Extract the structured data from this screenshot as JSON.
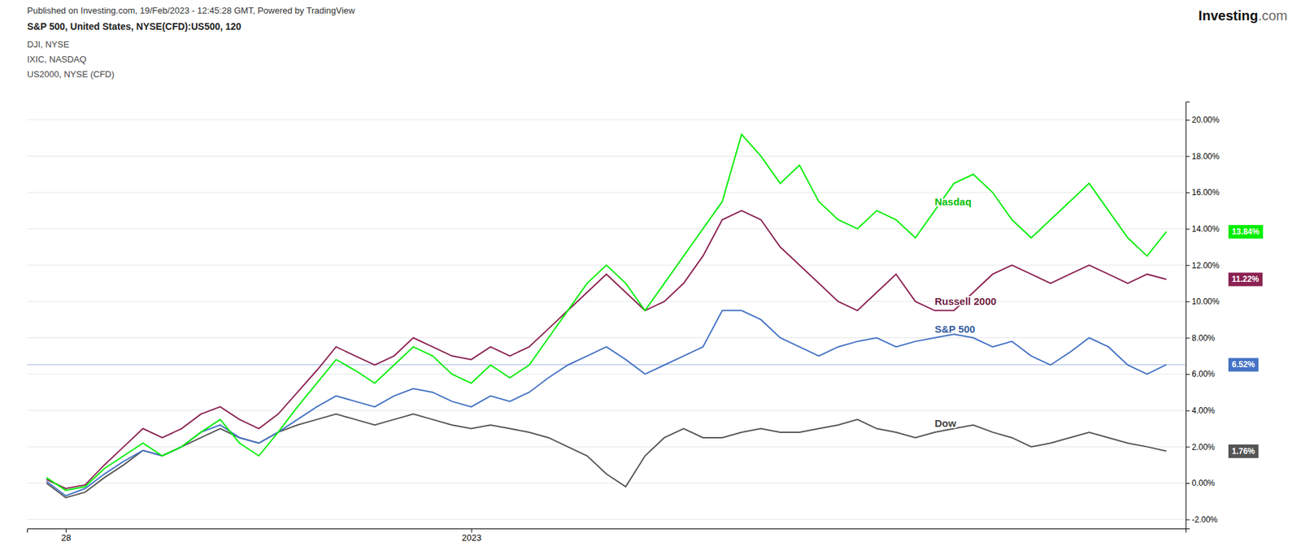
{
  "chart_data": {
    "type": "line",
    "title": "Published on Investing.com, 19/Feb/2023 - 12:45:28 GMT, Powered by TradingView",
    "subtitle": "S&P 500, United States, NYSE(CFD):US500, 120",
    "source_lines": [
      "DJI, NYSE",
      "IXIC, NASDAQ",
      "US2000, NYSE (CFD)"
    ],
    "watermark": [
      "Investing",
      ".com"
    ],
    "categories": [
      null,
      "28",
      null,
      null,
      null,
      null,
      null,
      null,
      null,
      null,
      null,
      null,
      null,
      null,
      null,
      null,
      null,
      null,
      null,
      null,
      null,
      null,
      "2023",
      null,
      null,
      null,
      null,
      null,
      null,
      null,
      null,
      null,
      null,
      null,
      null,
      null,
      null,
      null,
      null,
      null,
      null,
      null,
      null,
      null,
      null,
      null,
      null,
      null,
      null,
      null,
      null,
      null,
      null,
      null,
      null,
      null,
      null,
      null,
      null
    ],
    "ylim": [
      -2.5,
      21.0
    ],
    "yticks": [
      {
        "value": -2.0,
        "label": "-2.00%"
      },
      {
        "value": 0.0,
        "label": "0.00%"
      },
      {
        "value": 2.0,
        "label": "2.00%"
      },
      {
        "value": 4.0,
        "label": "4.00%"
      },
      {
        "value": 6.0,
        "label": "6.00%"
      },
      {
        "value": 8.0,
        "label": "8.00%"
      },
      {
        "value": 10.0,
        "label": "10.00%"
      },
      {
        "value": 12.0,
        "label": "12.00%"
      },
      {
        "value": 14.0,
        "label": "14.00%"
      },
      {
        "value": 16.0,
        "label": "16.00%"
      },
      {
        "value": 18.0,
        "label": "18.00%"
      },
      {
        "value": 20.0,
        "label": "20.00%"
      }
    ],
    "grid": true,
    "reference_line": 6.52,
    "series": [
      {
        "name": "Dow",
        "color": "#555555",
        "end_label": "1.76%",
        "values": [
          0.0,
          -0.8,
          -0.5,
          0.3,
          1.0,
          1.8,
          1.5,
          2.0,
          2.5,
          3.0,
          2.5,
          2.2,
          2.8,
          3.2,
          3.5,
          3.8,
          3.5,
          3.2,
          3.5,
          3.8,
          3.5,
          3.2,
          3.0,
          3.2,
          3.0,
          2.8,
          2.5,
          2.0,
          1.5,
          0.5,
          -0.2,
          1.5,
          2.5,
          3.0,
          2.5,
          2.5,
          2.8,
          3.0,
          2.8,
          2.8,
          3.0,
          3.2,
          3.5,
          3.0,
          2.8,
          2.5,
          2.8,
          3.0,
          3.2,
          2.8,
          2.5,
          2.0,
          2.2,
          2.5,
          2.8,
          2.5,
          2.2,
          2.0,
          1.76
        ]
      },
      {
        "name": "S&P 500",
        "color": "#4472c4",
        "end_label": "6.52%",
        "values": [
          0.1,
          -0.7,
          -0.3,
          0.5,
          1.2,
          1.8,
          1.5,
          2.0,
          2.8,
          3.2,
          2.5,
          2.2,
          2.8,
          3.5,
          4.2,
          4.8,
          4.5,
          4.2,
          4.8,
          5.2,
          5.0,
          4.5,
          4.2,
          4.8,
          4.5,
          5.0,
          5.8,
          6.5,
          7.0,
          7.5,
          6.8,
          6.0,
          6.5,
          7.0,
          7.5,
          9.5,
          9.5,
          9.0,
          8.0,
          7.5,
          7.0,
          7.5,
          7.8,
          8.0,
          7.5,
          7.8,
          8.0,
          8.2,
          8.0,
          7.5,
          7.8,
          7.0,
          6.5,
          7.2,
          8.0,
          7.5,
          6.5,
          6.0,
          6.52
        ]
      },
      {
        "name": "Russell 2000",
        "color": "#8b2252",
        "end_label": "11.22%",
        "values": [
          0.2,
          -0.3,
          -0.1,
          1.0,
          2.0,
          3.0,
          2.5,
          3.0,
          3.8,
          4.2,
          3.5,
          3.0,
          3.8,
          5.0,
          6.2,
          7.5,
          7.0,
          6.5,
          7.0,
          8.0,
          7.5,
          7.0,
          6.8,
          7.5,
          7.0,
          7.5,
          8.5,
          9.5,
          10.5,
          11.5,
          10.5,
          9.5,
          10.0,
          11.0,
          12.5,
          14.5,
          15.0,
          14.5,
          13.0,
          12.0,
          11.0,
          10.0,
          9.5,
          10.5,
          11.5,
          10.0,
          9.5,
          9.5,
          10.5,
          11.5,
          12.0,
          11.5,
          11.0,
          11.5,
          12.0,
          11.5,
          11.0,
          11.5,
          11.22
        ]
      },
      {
        "name": "Nasdaq",
        "color": "#00ee00",
        "end_label": "13.84%",
        "values": [
          0.3,
          -0.4,
          -0.2,
          0.8,
          1.5,
          2.2,
          1.5,
          2.0,
          2.8,
          3.5,
          2.2,
          1.5,
          2.8,
          4.2,
          5.5,
          6.8,
          6.2,
          5.5,
          6.5,
          7.5,
          7.0,
          6.0,
          5.5,
          6.5,
          5.8,
          6.5,
          8.0,
          9.5,
          11.0,
          12.0,
          11.0,
          9.5,
          11.0,
          12.5,
          14.0,
          15.5,
          19.2,
          18.0,
          16.5,
          17.5,
          15.5,
          14.5,
          14.0,
          15.0,
          14.5,
          13.5,
          15.0,
          16.5,
          17.0,
          16.0,
          14.5,
          13.5,
          14.5,
          15.5,
          16.5,
          15.0,
          13.5,
          12.5,
          13.84
        ]
      }
    ]
  }
}
